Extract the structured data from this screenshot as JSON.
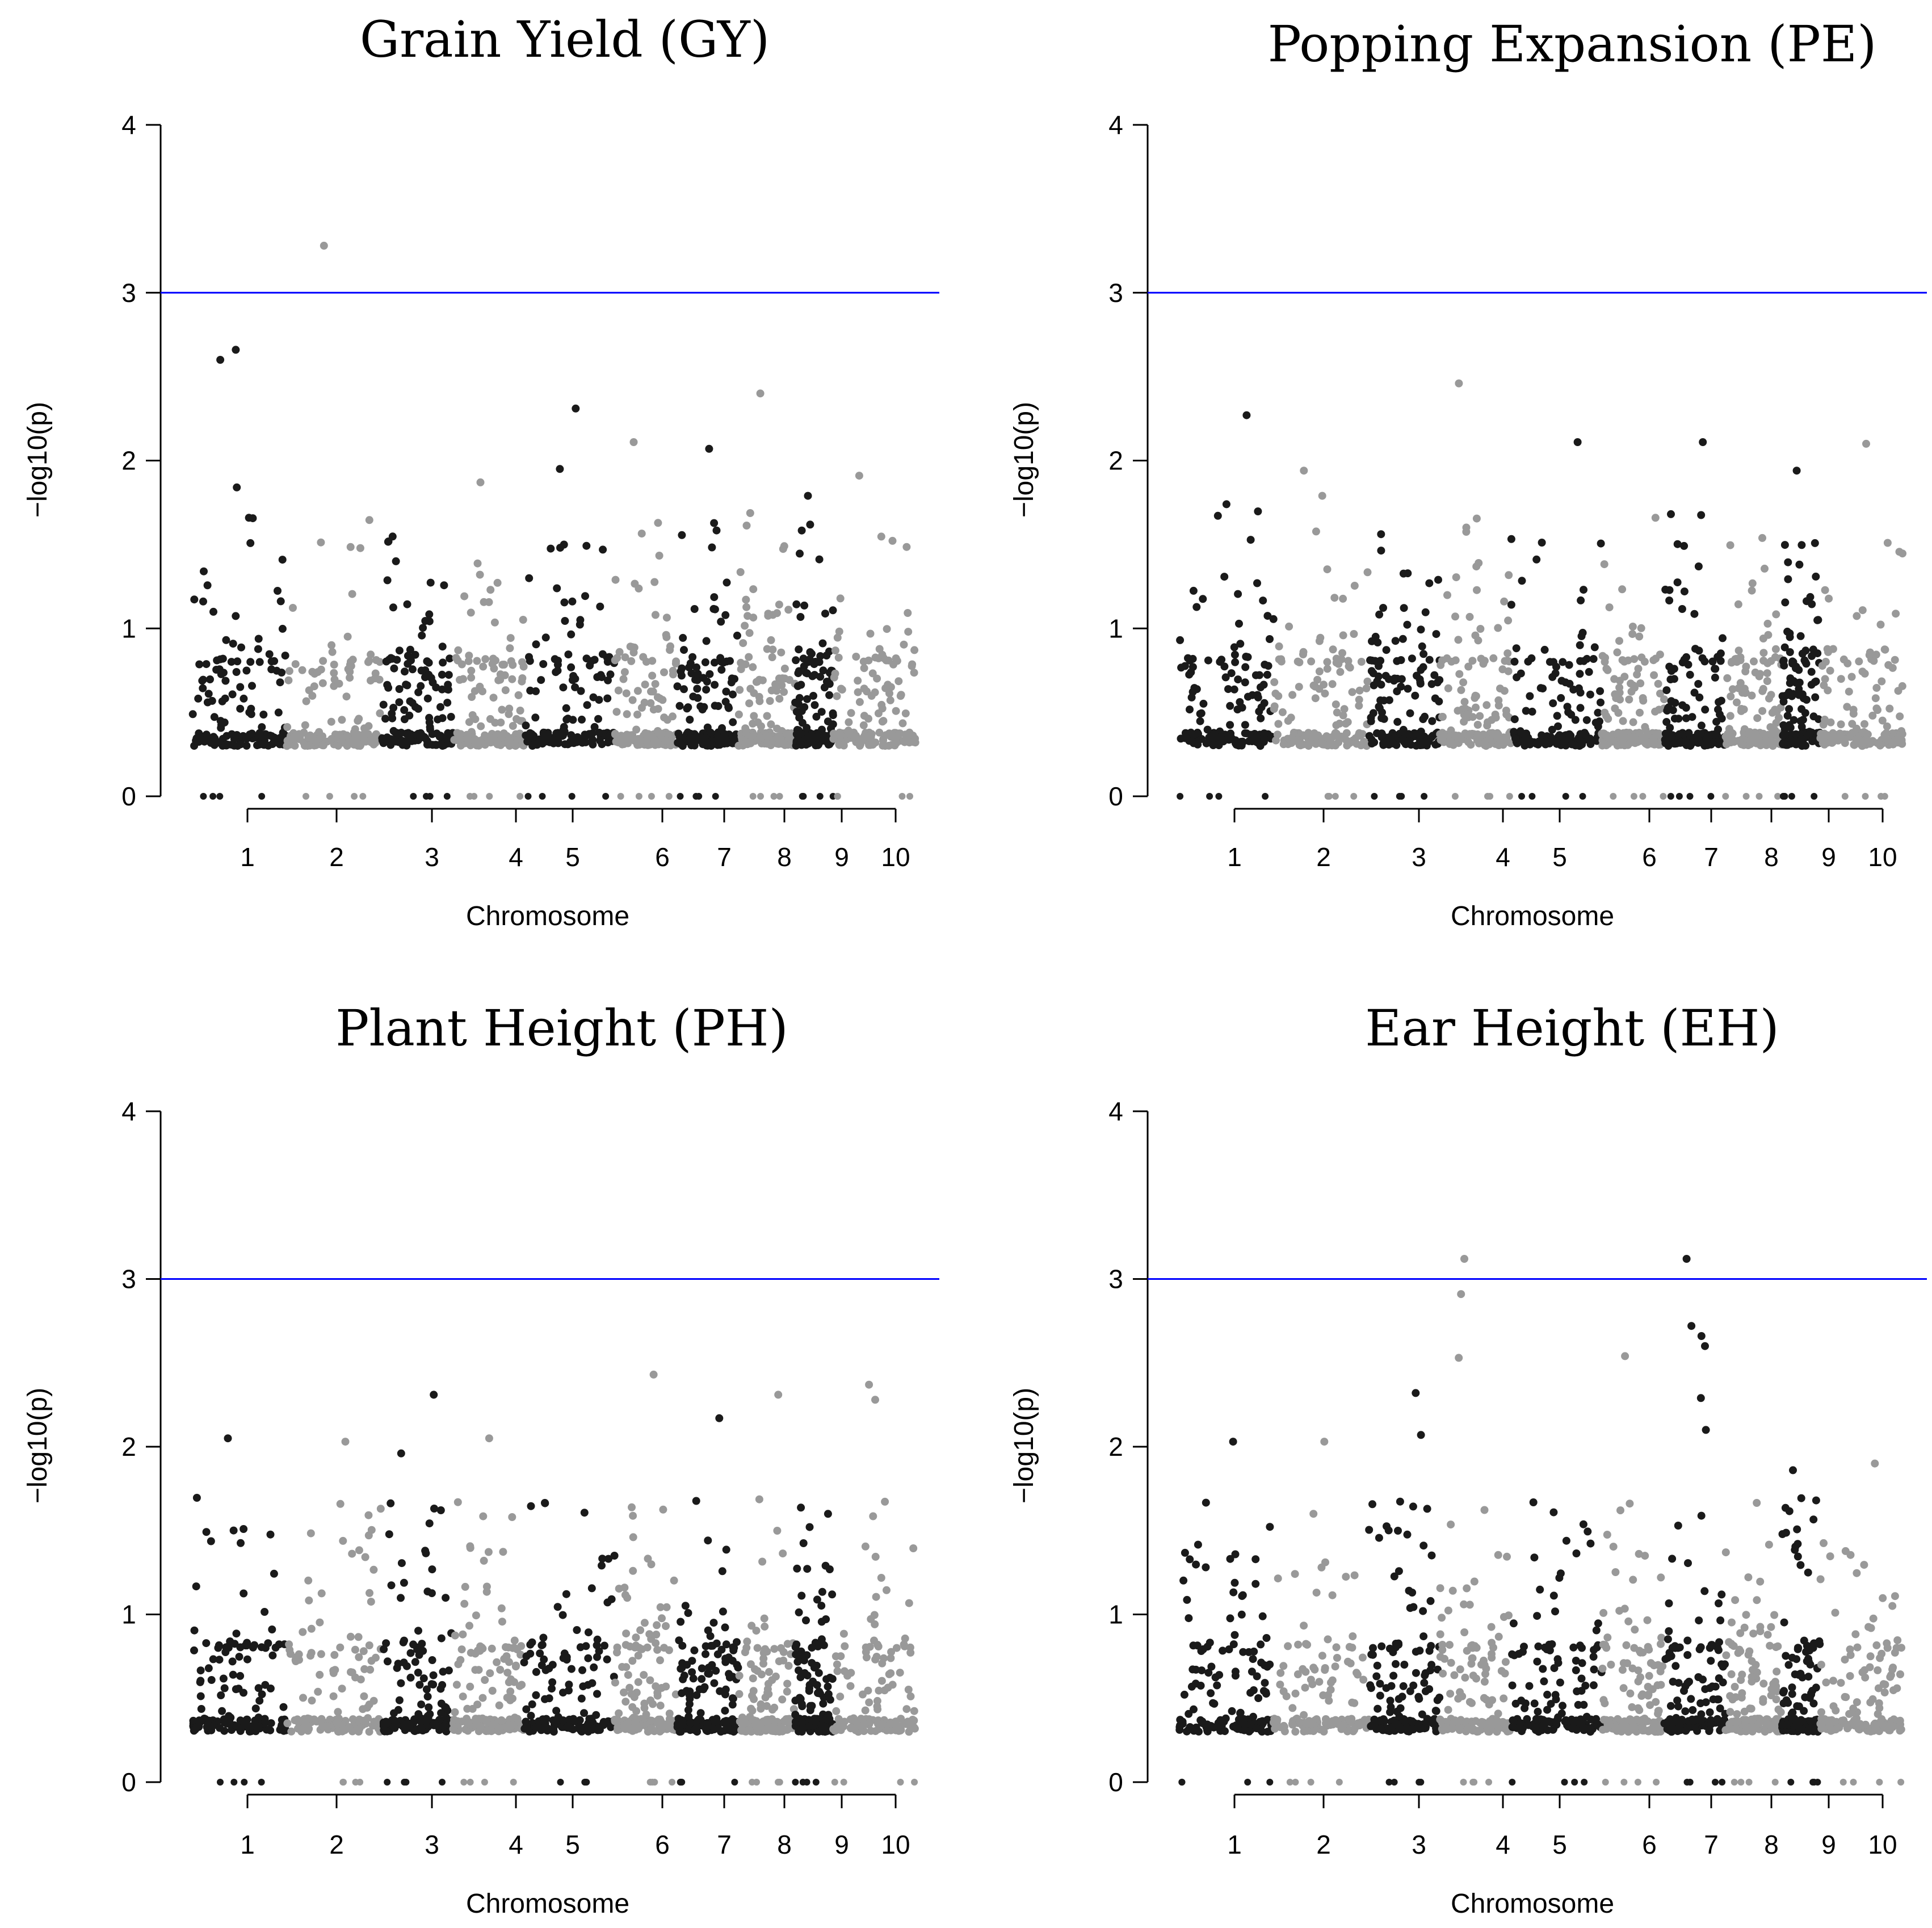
{
  "figure": {
    "colors": {
      "dark": "#1a1a1a",
      "light": "#999999",
      "threshold": "#0000ff",
      "axis": "#000000"
    }
  },
  "chart_data": [
    {
      "type": "scatter",
      "title": "Grain Yield (GY)",
      "xlabel": "Chromosome",
      "ylabel": "−log10(p)",
      "ylim": [
        0,
        4
      ],
      "yticks": [
        0,
        1,
        2,
        3,
        4
      ],
      "threshold": 3,
      "chromosomes": [
        "1",
        "2",
        "3",
        "4",
        "5",
        "6",
        "7",
        "8",
        "9",
        "10"
      ],
      "notable_points": [
        {
          "chromosome": "2",
          "y": 3.28
        },
        {
          "chromosome": "1",
          "y": 2.66
        },
        {
          "chromosome": "1",
          "y": 2.6
        },
        {
          "chromosome": "8",
          "y": 2.4
        },
        {
          "chromosome": "5",
          "y": 2.31
        },
        {
          "chromosome": "6",
          "y": 2.11
        },
        {
          "chromosome": "7",
          "y": 2.07
        },
        {
          "chromosome": "5",
          "y": 1.95
        },
        {
          "chromosome": "4",
          "y": 1.87
        },
        {
          "chromosome": "1",
          "y": 1.84
        },
        {
          "chromosome": "10",
          "y": 1.91
        },
        {
          "chromosome": "9",
          "y": 1.79
        }
      ]
    },
    {
      "type": "scatter",
      "title": "Popping Expansion (PE)",
      "xlabel": "Chromosome",
      "ylabel": "−log10(p)",
      "ylim": [
        0,
        4
      ],
      "yticks": [
        0,
        1,
        2,
        3,
        4
      ],
      "threshold": 3,
      "chromosomes": [
        "1",
        "2",
        "3",
        "4",
        "5",
        "6",
        "7",
        "8",
        "9",
        "10"
      ],
      "notable_points": [
        {
          "chromosome": "4",
          "y": 2.46
        },
        {
          "chromosome": "1",
          "y": 2.27
        },
        {
          "chromosome": "5",
          "y": 2.11
        },
        {
          "chromosome": "7",
          "y": 2.11
        },
        {
          "chromosome": "10",
          "y": 2.1
        },
        {
          "chromosome": "9",
          "y": 1.94
        },
        {
          "chromosome": "2",
          "y": 1.94
        },
        {
          "chromosome": "2",
          "y": 1.79
        },
        {
          "chromosome": "1",
          "y": 1.74
        }
      ]
    },
    {
      "type": "scatter",
      "title": "Plant Height (PH)",
      "xlabel": "Chromosome",
      "ylabel": "−log10(p)",
      "ylim": [
        0,
        4
      ],
      "yticks": [
        0,
        1,
        2,
        3,
        4
      ],
      "threshold": 3,
      "chromosomes": [
        "1",
        "2",
        "3",
        "4",
        "5",
        "6",
        "7",
        "8",
        "9",
        "10"
      ],
      "notable_points": [
        {
          "chromosome": "6",
          "y": 2.43
        },
        {
          "chromosome": "10",
          "y": 2.37
        },
        {
          "chromosome": "3",
          "y": 2.31
        },
        {
          "chromosome": "8",
          "y": 2.31
        },
        {
          "chromosome": "10",
          "y": 2.28
        },
        {
          "chromosome": "7",
          "y": 2.17
        },
        {
          "chromosome": "1",
          "y": 2.05
        },
        {
          "chromosome": "4",
          "y": 2.05
        },
        {
          "chromosome": "2",
          "y": 2.03
        },
        {
          "chromosome": "3",
          "y": 1.96
        }
      ]
    },
    {
      "type": "scatter",
      "title": "Ear Height (EH)",
      "xlabel": "Chromosome",
      "ylabel": "−log10(p)",
      "ylim": [
        0,
        4
      ],
      "yticks": [
        0,
        1,
        2,
        3,
        4
      ],
      "threshold": 3,
      "chromosomes": [
        "1",
        "2",
        "3",
        "4",
        "5",
        "6",
        "7",
        "8",
        "9",
        "10"
      ],
      "notable_points": [
        {
          "chromosome": "4",
          "y": 3.12
        },
        {
          "chromosome": "7",
          "y": 3.12
        },
        {
          "chromosome": "4",
          "y": 2.91
        },
        {
          "chromosome": "7",
          "y": 2.72
        },
        {
          "chromosome": "7",
          "y": 2.66
        },
        {
          "chromosome": "7",
          "y": 2.6
        },
        {
          "chromosome": "6",
          "y": 2.54
        },
        {
          "chromosome": "4",
          "y": 2.53
        },
        {
          "chromosome": "3",
          "y": 2.32
        },
        {
          "chromosome": "7",
          "y": 2.29
        },
        {
          "chromosome": "7",
          "y": 2.1
        },
        {
          "chromosome": "3",
          "y": 2.07
        },
        {
          "chromosome": "1",
          "y": 2.03
        },
        {
          "chromosome": "2",
          "y": 2.03
        },
        {
          "chromosome": "10",
          "y": 1.9
        },
        {
          "chromosome": "9",
          "y": 1.86
        }
      ]
    }
  ]
}
